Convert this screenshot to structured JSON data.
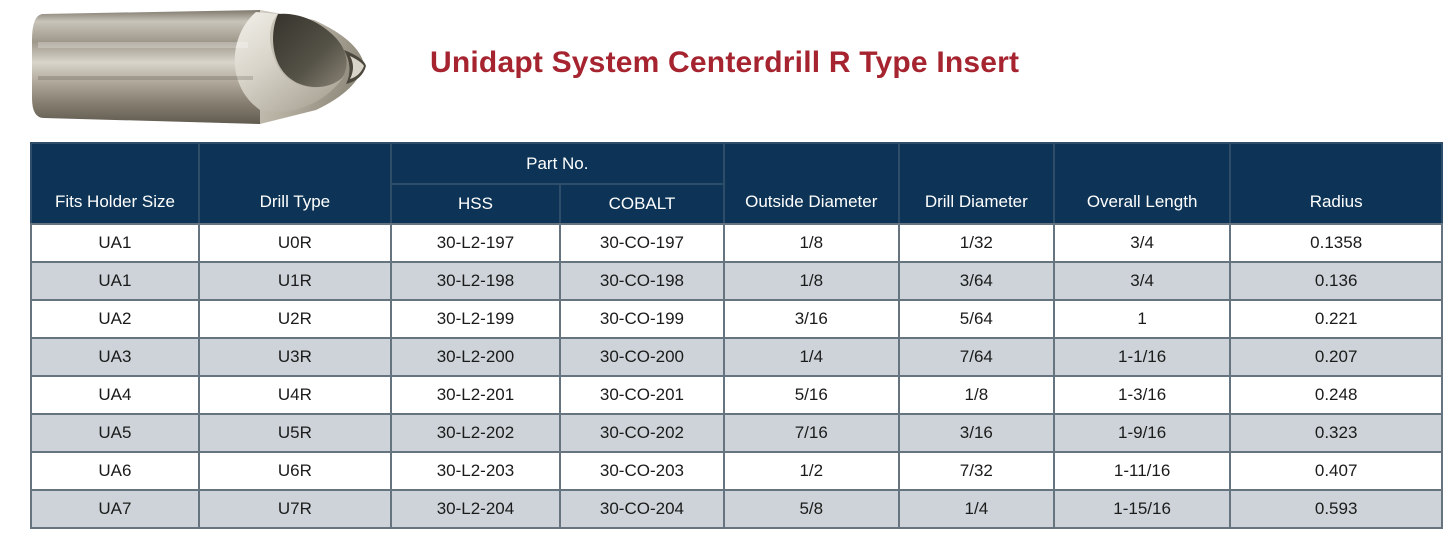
{
  "page": {
    "title": "Unidapt System Centerdrill R Type Insert"
  },
  "product_image": {
    "name": "centerdrill-r-type-insert-photo"
  },
  "colors": {
    "title_red": "#A6242F",
    "header_navy": "#0D3456",
    "alt_row_gray": "#CDD3D8",
    "grid_border": "#66747F"
  },
  "table": {
    "part_no_group_label": "Part No.",
    "columns": [
      "Fits Holder Size",
      "Drill Type",
      "HSS",
      "COBALT",
      "Outside Diameter",
      "Drill Diameter",
      "Overall Length",
      "Radius"
    ],
    "rows": [
      [
        "UA1",
        "U0R",
        "30-L2-197",
        "30-CO-197",
        "1/8",
        "1/32",
        "3/4",
        "0.1358"
      ],
      [
        "UA1",
        "U1R",
        "30-L2-198",
        "30-CO-198",
        "1/8",
        "3/64",
        "3/4",
        "0.136"
      ],
      [
        "UA2",
        "U2R",
        "30-L2-199",
        "30-CO-199",
        "3/16",
        "5/64",
        "1",
        "0.221"
      ],
      [
        "UA3",
        "U3R",
        "30-L2-200",
        "30-CO-200",
        "1/4",
        "7/64",
        "1-1/16",
        "0.207"
      ],
      [
        "UA4",
        "U4R",
        "30-L2-201",
        "30-CO-201",
        "5/16",
        "1/8",
        "1-3/16",
        "0.248"
      ],
      [
        "UA5",
        "U5R",
        "30-L2-202",
        "30-CO-202",
        "7/16",
        "3/16",
        "1-9/16",
        "0.323"
      ],
      [
        "UA6",
        "U6R",
        "30-L2-203",
        "30-CO-203",
        "1/2",
        "7/32",
        "1-11/16",
        "0.407"
      ],
      [
        "UA7",
        "U7R",
        "30-L2-204",
        "30-CO-204",
        "5/8",
        "1/4",
        "1-15/16",
        "0.593"
      ]
    ]
  }
}
